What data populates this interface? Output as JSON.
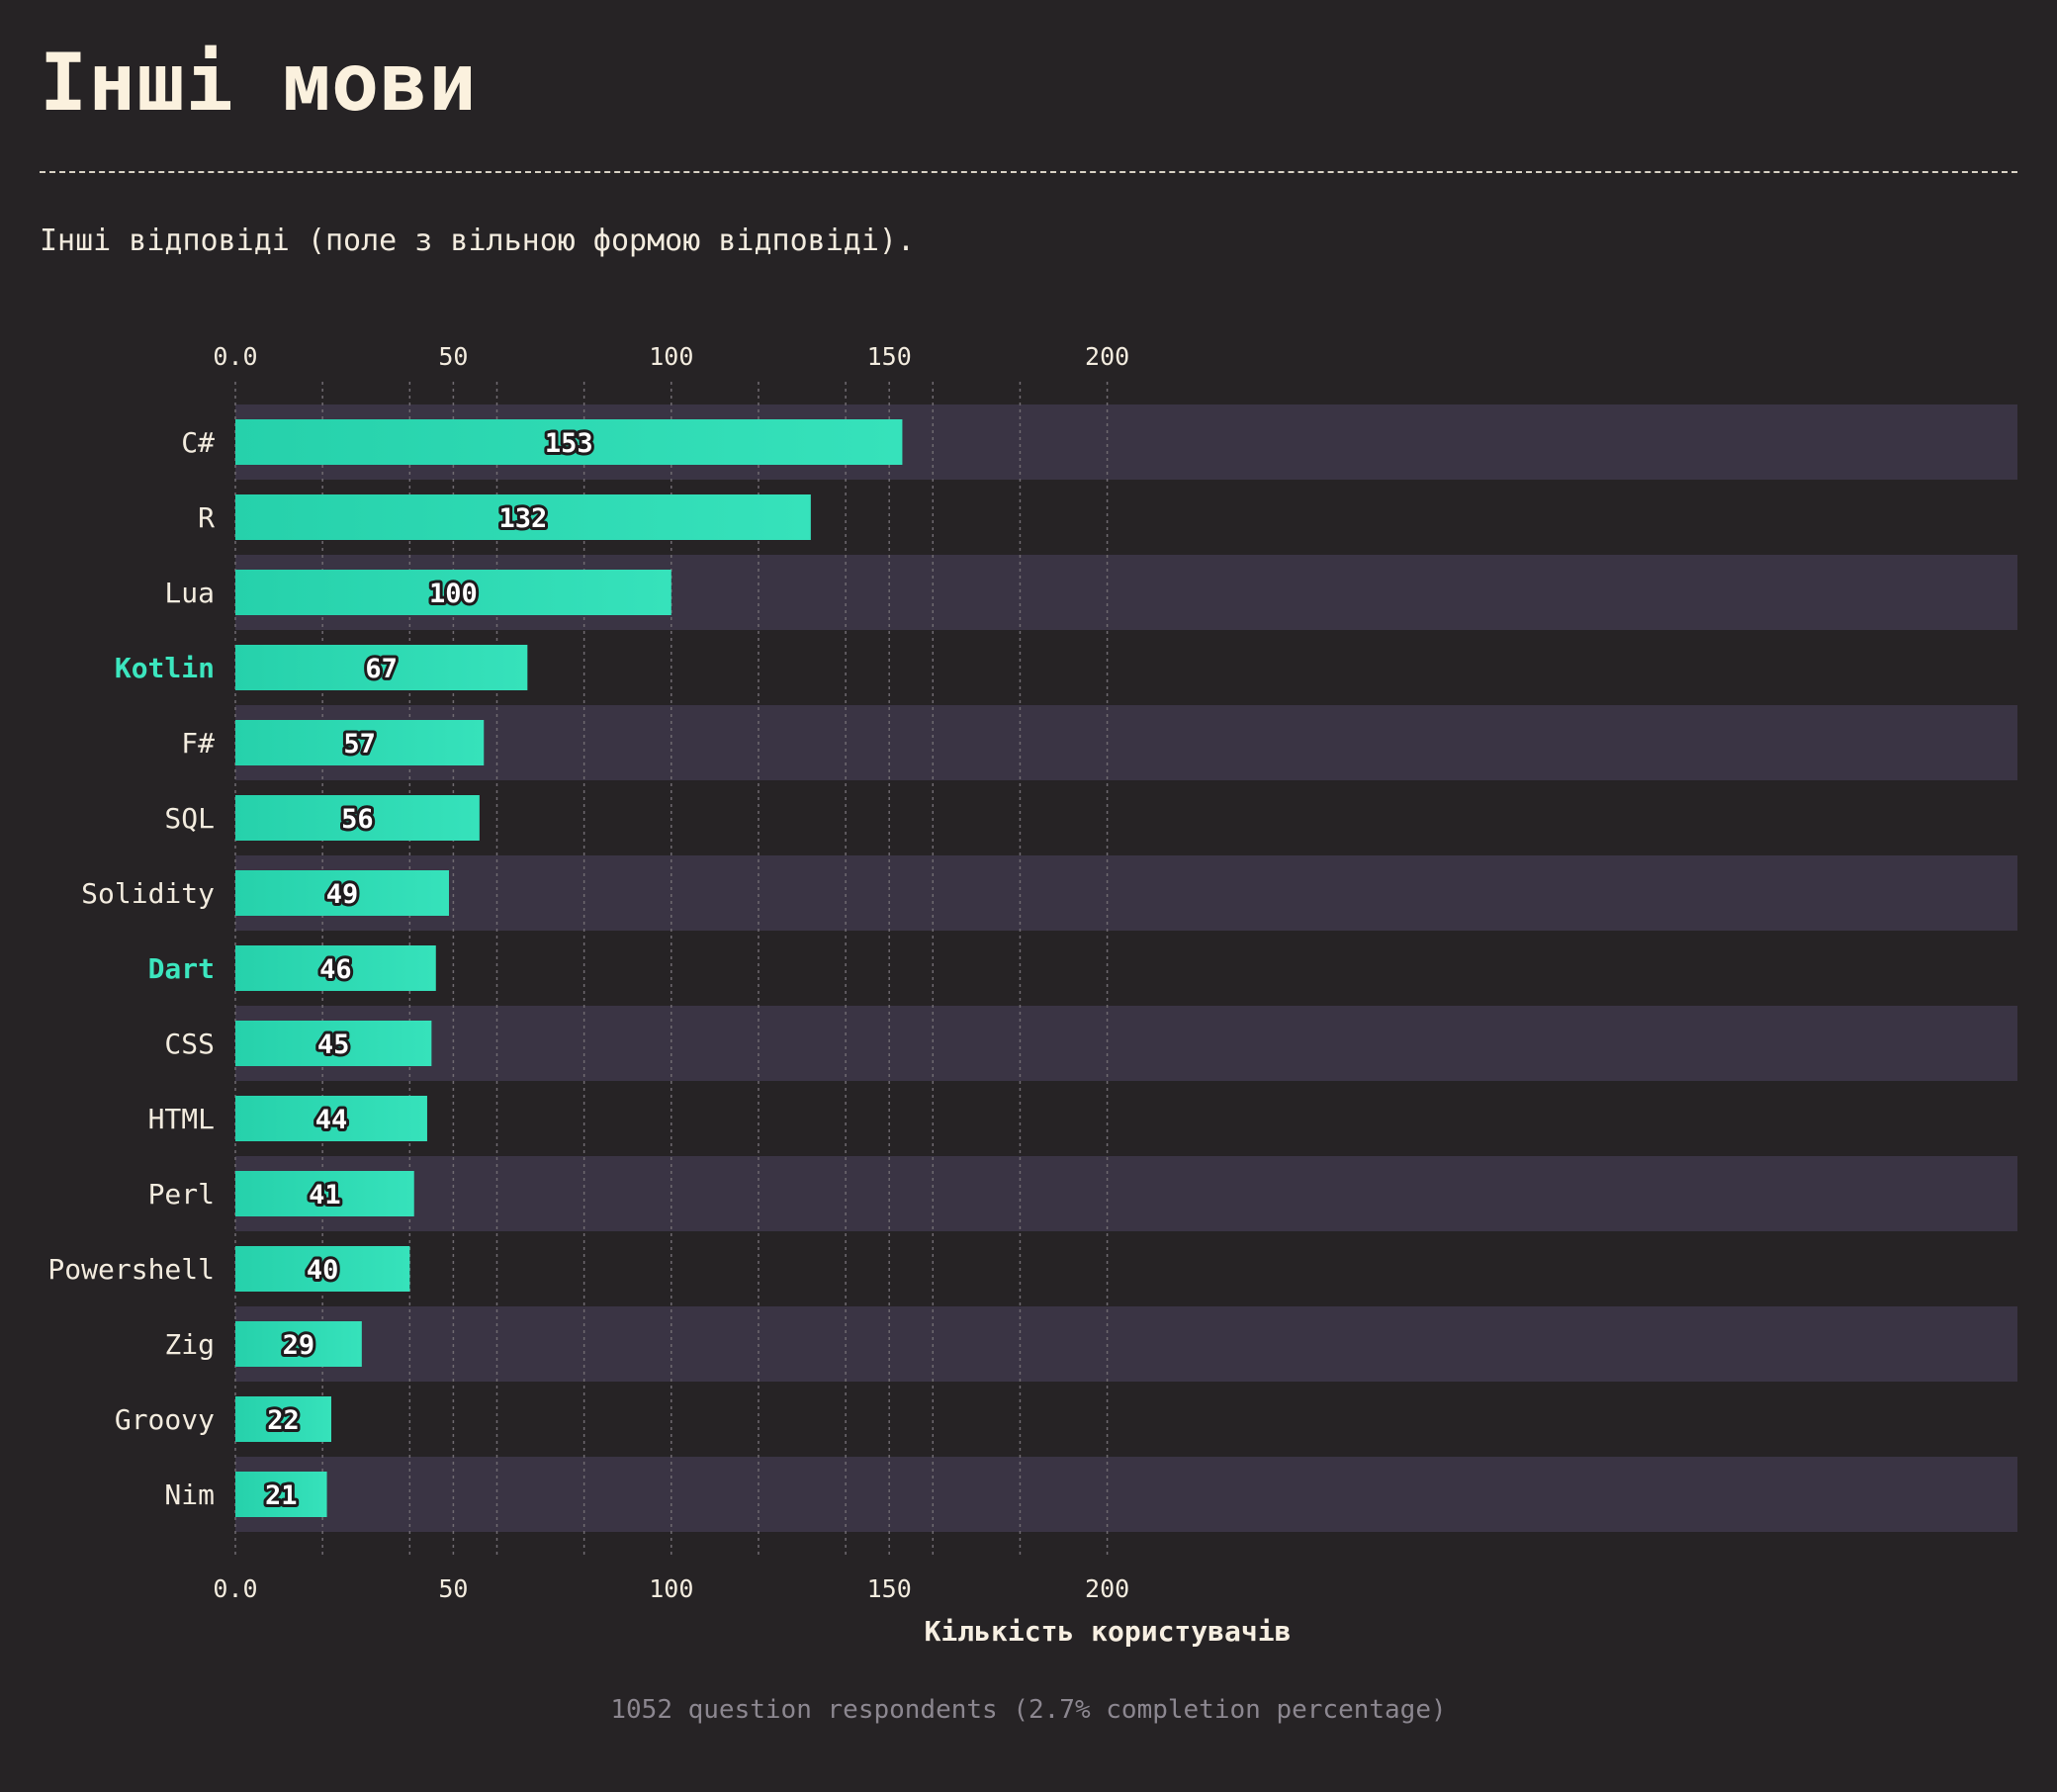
{
  "page": {
    "title": "Інші мови",
    "subtitle": "Інші відповіді (поле з вільною формою відповіді).",
    "footer": "1052 question respondents (2.7% completion percentage)"
  },
  "colors": {
    "background": "#262325",
    "band": "#3a3444",
    "bar_start": "#26d1ab",
    "bar_end": "#36e2bb",
    "highlight_label": "#3ce6bf",
    "text": "#f3ecdf",
    "grid": "#6f6a70"
  },
  "chart_data": {
    "type": "bar",
    "orientation": "horizontal",
    "title": "Інші мови",
    "xlabel": "Кількість користувачів",
    "ylabel": "",
    "xlim": [
      0,
      205
    ],
    "ticks": [
      0,
      50,
      100,
      150,
      200
    ],
    "tick_labels": [
      "0.0",
      "50",
      "100",
      "150",
      "200"
    ],
    "minor_grid_step": 20,
    "categories": [
      "C#",
      "R",
      "Lua",
      "Kotlin",
      "F#",
      "SQL",
      "Solidity",
      "Dart",
      "CSS",
      "HTML",
      "Perl",
      "Powershell",
      "Zig",
      "Groovy",
      "Nim"
    ],
    "values": [
      153,
      132,
      100,
      67,
      57,
      56,
      49,
      46,
      45,
      44,
      41,
      40,
      29,
      22,
      21
    ],
    "highlighted": [
      "Kotlin",
      "Dart"
    ],
    "grid": true,
    "legend": "none"
  }
}
